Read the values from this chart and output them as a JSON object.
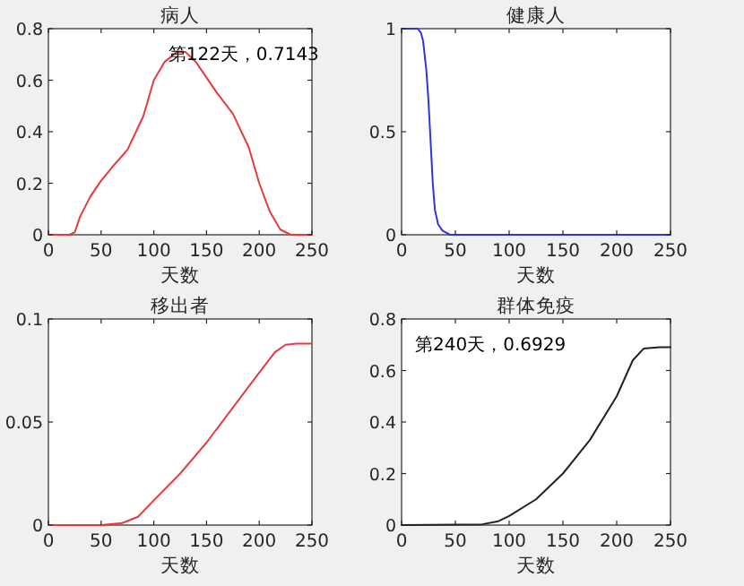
{
  "chart_data": [
    {
      "type": "line",
      "title": "病人",
      "xlabel": "天数",
      "x": [
        0,
        20,
        25,
        30,
        40,
        50,
        60,
        75,
        90,
        100,
        110,
        122,
        130,
        140,
        150,
        160,
        175,
        190,
        200,
        210,
        220,
        230,
        250
      ],
      "series": [
        {
          "color": "#e8393f",
          "values": [
            0,
            0,
            0.01,
            0.07,
            0.15,
            0.21,
            0.26,
            0.33,
            0.46,
            0.6,
            0.67,
            0.71,
            0.71,
            0.67,
            0.61,
            0.55,
            0.47,
            0.34,
            0.2,
            0.09,
            0.02,
            0,
            0
          ]
        }
      ],
      "xlim": [
        0,
        250
      ],
      "xticks": [
        0,
        50,
        100,
        150,
        200,
        250
      ],
      "ylim": [
        0,
        0.8
      ],
      "yticks": [
        0,
        0.2,
        0.4,
        0.6,
        0.8
      ],
      "annotations": [
        "第122天，0.7143"
      ]
    },
    {
      "type": "line",
      "title": "健康人",
      "xlabel": "天数",
      "x": [
        0,
        15,
        18,
        20,
        23,
        25,
        27,
        29,
        31,
        34,
        38,
        45,
        50,
        250
      ],
      "series": [
        {
          "color": "#3333dd",
          "values": [
            1,
            1,
            0.98,
            0.94,
            0.8,
            0.65,
            0.45,
            0.25,
            0.12,
            0.05,
            0.02,
            0,
            0,
            0
          ]
        }
      ],
      "xlim": [
        0,
        250
      ],
      "xticks": [
        0,
        50,
        100,
        150,
        200,
        250
      ],
      "ylim": [
        0,
        1
      ],
      "yticks": [
        0,
        0.5,
        1
      ]
    },
    {
      "type": "line",
      "title": "移出者",
      "xlabel": "天数",
      "x": [
        0,
        50,
        70,
        85,
        100,
        125,
        150,
        175,
        200,
        215,
        225,
        235,
        250
      ],
      "series": [
        {
          "color": "#e8393f",
          "values": [
            0,
            0,
            0.001,
            0.004,
            0.012,
            0.025,
            0.04,
            0.057,
            0.074,
            0.084,
            0.0875,
            0.088,
            0.088
          ]
        }
      ],
      "xlim": [
        0,
        250
      ],
      "xticks": [
        0,
        50,
        100,
        150,
        200,
        250
      ],
      "ylim": [
        0,
        0.1
      ],
      "yticks": [
        0,
        0.05,
        0.1
      ]
    },
    {
      "type": "line",
      "title": "群体免疫",
      "xlabel": "天数",
      "x": [
        0,
        75,
        90,
        100,
        125,
        150,
        175,
        200,
        215,
        225,
        240,
        250
      ],
      "series": [
        {
          "color": "#222222",
          "values": [
            0,
            0.003,
            0.015,
            0.035,
            0.1,
            0.2,
            0.33,
            0.5,
            0.64,
            0.685,
            0.69,
            0.69
          ]
        }
      ],
      "xlim": [
        0,
        250
      ],
      "xticks": [
        0,
        50,
        100,
        150,
        200,
        250
      ],
      "ylim": [
        0,
        0.8
      ],
      "yticks": [
        0,
        0.2,
        0.4,
        0.6,
        0.8
      ],
      "annotations": [
        "第240天，0.6929"
      ]
    }
  ]
}
